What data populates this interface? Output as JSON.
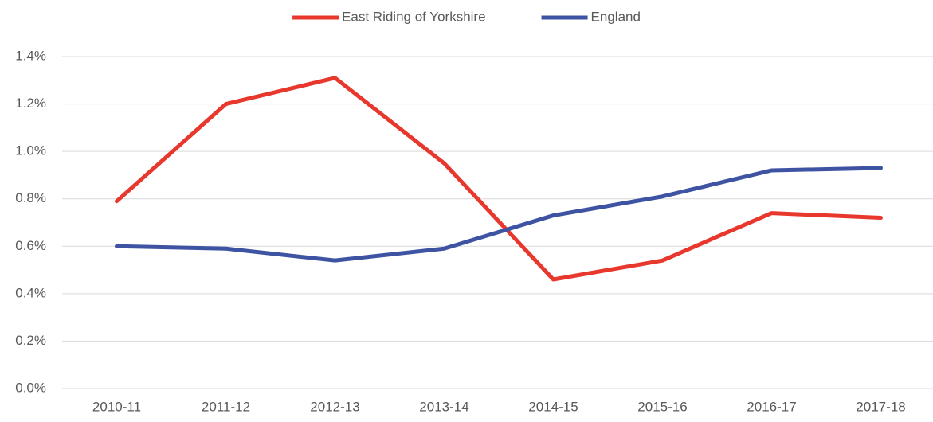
{
  "chart_data": {
    "type": "line",
    "categories": [
      "2010-11",
      "2011-12",
      "2012-13",
      "2013-14",
      "2014-15",
      "2015-16",
      "2016-17",
      "2017-18"
    ],
    "series": [
      {
        "name": "East Riding of Yorkshire",
        "color": "#e8382d",
        "values": [
          0.79,
          1.2,
          1.31,
          0.95,
          0.46,
          0.54,
          0.74,
          0.72
        ]
      },
      {
        "name": "England",
        "color": "#3e54a3",
        "values": [
          0.6,
          0.59,
          0.54,
          0.59,
          0.73,
          0.81,
          0.92,
          0.93
        ]
      }
    ],
    "ylim": [
      0,
      1.4
    ],
    "yticks": [
      {
        "value": 0,
        "label": "0.0%"
      },
      {
        "value": 0.2,
        "label": "0.2%"
      },
      {
        "value": 0.4,
        "label": "0.4%"
      },
      {
        "value": 0.6,
        "label": "0.6%"
      },
      {
        "value": 0.8,
        "label": "0.8%"
      },
      {
        "value": 1.0,
        "label": "1.0%"
      },
      {
        "value": 1.2,
        "label": "1.2%"
      },
      {
        "value": 1.4,
        "label": "1.4%"
      }
    ],
    "grid": true,
    "legend": "top"
  }
}
